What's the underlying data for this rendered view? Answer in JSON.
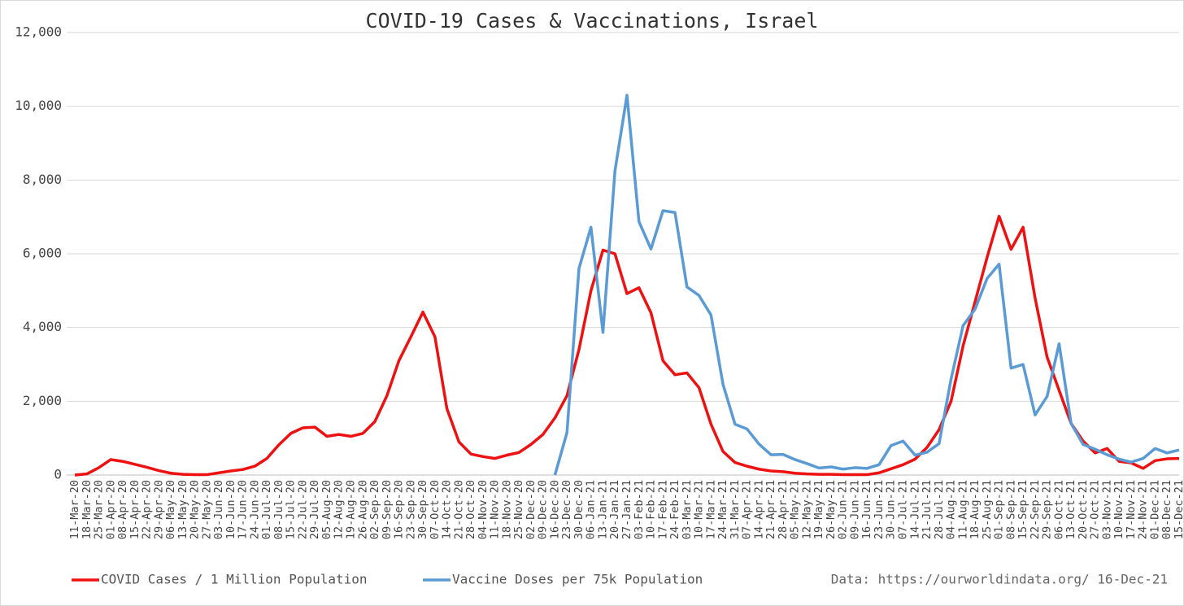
{
  "chart_data": {
    "type": "line",
    "title": "COVID-19 Cases & Vaccinations, Israel",
    "source": "Data: https://ourworldindata.org/ 16-Dec-21",
    "categories": [
      "11-Mar-20",
      "18-Mar-20",
      "25-Mar-20",
      "01-Apr-20",
      "08-Apr-20",
      "15-Apr-20",
      "22-Apr-20",
      "29-Apr-20",
      "06-May-20",
      "13-May-20",
      "20-May-20",
      "27-May-20",
      "03-Jun-20",
      "10-Jun-20",
      "17-Jun-20",
      "24-Jun-20",
      "01-Jul-20",
      "08-Jul-20",
      "15-Jul-20",
      "22-Jul-20",
      "29-Jul-20",
      "05-Aug-20",
      "12-Aug-20",
      "19-Aug-20",
      "26-Aug-20",
      "02-Sep-20",
      "09-Sep-20",
      "16-Sep-20",
      "23-Sep-20",
      "30-Sep-20",
      "07-Oct-20",
      "14-Oct-20",
      "21-Oct-20",
      "28-Oct-20",
      "04-Nov-20",
      "11-Nov-20",
      "18-Nov-20",
      "25-Nov-20",
      "02-Dec-20",
      "09-Dec-20",
      "16-Dec-20",
      "23-Dec-20",
      "30-Dec-20",
      "06-Jan-21",
      "13-Jan-21",
      "20-Jan-21",
      "27-Jan-21",
      "03-Feb-21",
      "10-Feb-21",
      "17-Feb-21",
      "24-Feb-21",
      "03-Mar-21",
      "10-Mar-21",
      "17-Mar-21",
      "24-Mar-21",
      "31-Mar-21",
      "07-Apr-21",
      "14-Apr-21",
      "21-Apr-21",
      "28-Apr-21",
      "05-May-21",
      "12-May-21",
      "19-May-21",
      "26-May-21",
      "02-Jun-21",
      "09-Jun-21",
      "16-Jun-21",
      "23-Jun-21",
      "30-Jun-21",
      "07-Jul-21",
      "14-Jul-21",
      "21-Jul-21",
      "28-Jul-21",
      "04-Aug-21",
      "11-Aug-21",
      "18-Aug-21",
      "25-Aug-21",
      "01-Sep-21",
      "08-Sep-21",
      "15-Sep-21",
      "22-Sep-21",
      "29-Sep-21",
      "06-Oct-21",
      "13-Oct-21",
      "20-Oct-21",
      "27-Oct-21",
      "03-Nov-21",
      "10-Nov-21",
      "17-Nov-21",
      "24-Nov-21",
      "01-Dec-21",
      "08-Dec-21",
      "15-Dec-21"
    ],
    "series": [
      {
        "name": "COVID Cases / 1 Million Population",
        "color": "#ee1111",
        "values": [
          0,
          30,
          200,
          420,
          370,
          290,
          210,
          120,
          50,
          20,
          10,
          10,
          60,
          110,
          150,
          240,
          450,
          820,
          1130,
          1280,
          1300,
          1050,
          1100,
          1050,
          1130,
          1450,
          2150,
          3100,
          3750,
          4420,
          3750,
          1800,
          900,
          570,
          500,
          450,
          540,
          610,
          830,
          1100,
          1550,
          2150,
          3400,
          5000,
          6100,
          6000,
          4920,
          5080,
          4400,
          3100,
          2720,
          2770,
          2370,
          1380,
          640,
          340,
          240,
          160,
          110,
          90,
          50,
          30,
          20,
          20,
          10,
          10,
          10,
          60,
          170,
          280,
          430,
          750,
          1230,
          2000,
          3500,
          4700,
          5900,
          7020,
          6120,
          6720,
          4800,
          3200,
          2300,
          1400,
          920,
          600,
          720,
          370,
          330,
          180,
          390,
          440,
          450
        ]
      },
      {
        "name": "Vaccine Doses per 75k Population",
        "color": "#5b9bd5",
        "values": [
          null,
          null,
          null,
          null,
          null,
          null,
          null,
          null,
          null,
          null,
          null,
          null,
          null,
          null,
          null,
          null,
          null,
          null,
          null,
          null,
          null,
          null,
          null,
          null,
          null,
          null,
          null,
          null,
          null,
          null,
          null,
          null,
          null,
          null,
          null,
          null,
          null,
          null,
          null,
          null,
          0,
          1150,
          5600,
          6720,
          3870,
          8250,
          10300,
          6870,
          6130,
          7170,
          7120,
          5100,
          4870,
          4340,
          2460,
          1380,
          1250,
          840,
          550,
          560,
          420,
          310,
          190,
          220,
          160,
          200,
          180,
          280,
          800,
          920,
          540,
          620,
          850,
          2600,
          4050,
          4500,
          5330,
          5720,
          2900,
          3000,
          1630,
          2130,
          3560,
          1400,
          830,
          700,
          550,
          430,
          350,
          450,
          720,
          600,
          680
        ]
      }
    ],
    "ylim": [
      0,
      12000
    ],
    "yticks": [
      0,
      {
        "value": 2000,
        "label": "2,000"
      },
      {
        "value": 4000,
        "label": "4,000"
      },
      {
        "value": 6000,
        "label": "6,000"
      },
      {
        "value": 8000,
        "label": "8,000"
      },
      {
        "value": 10000,
        "label": "10,000"
      },
      {
        "value": 12000,
        "label": "12,000"
      }
    ],
    "grid": true,
    "legend": "bottom"
  }
}
